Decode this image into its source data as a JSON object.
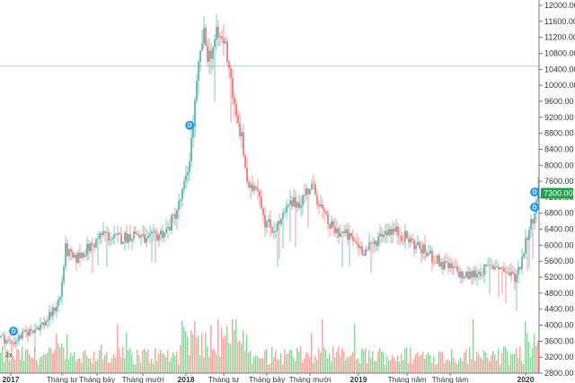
{
  "chart_data": {
    "type": "candlestick",
    "y_axis": {
      "min": 2800,
      "max": 12000,
      "ticks": [
        "12000.00",
        "11600.00",
        "11200.00",
        "10800.00",
        "10400.00",
        "10000.00",
        "9600.00",
        "9200.00",
        "8800.00",
        "8400.00",
        "8000.00",
        "7600.00",
        "7200.00",
        "6800.00",
        "6400.00",
        "6000.00",
        "5600.00",
        "5200.00",
        "4800.00",
        "4400.00",
        "4000.00",
        "3600.00",
        "3200.00",
        "2800.00"
      ]
    },
    "x_axis": {
      "labels": [
        {
          "text": "2017",
          "year": true,
          "pos": 0.02
        },
        {
          "text": "Tháng tư",
          "year": false,
          "pos": 0.115
        },
        {
          "text": "Tháng bảy",
          "year": false,
          "pos": 0.18
        },
        {
          "text": "Tháng mười",
          "year": false,
          "pos": 0.265
        },
        {
          "text": "2018",
          "year": true,
          "pos": 0.345
        },
        {
          "text": "Tháng tư",
          "year": false,
          "pos": 0.415
        },
        {
          "text": "Tháng bảy",
          "year": false,
          "pos": 0.495
        },
        {
          "text": "Tháng mười",
          "year": false,
          "pos": 0.575
        },
        {
          "text": "2019",
          "year": true,
          "pos": 0.665
        },
        {
          "text": "Tháng năm",
          "year": false,
          "pos": 0.755
        },
        {
          "text": "Tháng tám",
          "year": false,
          "pos": 0.835
        },
        {
          "text": "2020",
          "year": true,
          "pos": 0.975
        }
      ]
    },
    "reference_line": 10480,
    "last_price": "7300.00",
    "last_price_value": 7300,
    "price_path": [
      [
        0.0,
        3700
      ],
      [
        0.02,
        3550
      ],
      [
        0.04,
        3750
      ],
      [
        0.06,
        3900
      ],
      [
        0.08,
        4050
      ],
      [
        0.095,
        4300
      ],
      [
        0.11,
        4700
      ],
      [
        0.12,
        5900
      ],
      [
        0.135,
        5600
      ],
      [
        0.15,
        5800
      ],
      [
        0.17,
        6000
      ],
      [
        0.19,
        6300
      ],
      [
        0.21,
        6150
      ],
      [
        0.23,
        6200
      ],
      [
        0.25,
        6300
      ],
      [
        0.27,
        6100
      ],
      [
        0.29,
        6250
      ],
      [
        0.31,
        6400
      ],
      [
        0.33,
        7000
      ],
      [
        0.345,
        7700
      ],
      [
        0.355,
        8800
      ],
      [
        0.365,
        10200
      ],
      [
        0.375,
        11300
      ],
      [
        0.385,
        10700
      ],
      [
        0.4,
        11200
      ],
      [
        0.415,
        11100
      ],
      [
        0.425,
        10400
      ],
      [
        0.435,
        9200
      ],
      [
        0.445,
        8800
      ],
      [
        0.46,
        7300
      ],
      [
        0.475,
        7600
      ],
      [
        0.49,
        6600
      ],
      [
        0.505,
        6400
      ],
      [
        0.52,
        6600
      ],
      [
        0.535,
        7000
      ],
      [
        0.555,
        7100
      ],
      [
        0.575,
        7500
      ],
      [
        0.59,
        7100
      ],
      [
        0.6,
        6700
      ],
      [
        0.615,
        6400
      ],
      [
        0.635,
        6300
      ],
      [
        0.655,
        6100
      ],
      [
        0.675,
        5850
      ],
      [
        0.69,
        6000
      ],
      [
        0.705,
        6300
      ],
      [
        0.72,
        6400
      ],
      [
        0.74,
        6300
      ],
      [
        0.76,
        6100
      ],
      [
        0.78,
        5900
      ],
      [
        0.8,
        5700
      ],
      [
        0.82,
        5500
      ],
      [
        0.84,
        5400
      ],
      [
        0.86,
        5200
      ],
      [
        0.88,
        5300
      ],
      [
        0.9,
        5400
      ],
      [
        0.92,
        5500
      ],
      [
        0.94,
        5300
      ],
      [
        0.955,
        5200
      ],
      [
        0.965,
        5600
      ],
      [
        0.975,
        6200
      ],
      [
        0.985,
        6600
      ],
      [
        0.995,
        7300
      ],
      [
        1.0,
        7350
      ]
    ],
    "volume_scale_max": 1.0,
    "dividend_markers": [
      {
        "label": "D",
        "pos": 0.025,
        "price": 3850
      },
      {
        "label": "D",
        "pos": 0.352,
        "price": 9000
      },
      {
        "label": "D",
        "pos": 0.998,
        "price": 7330
      },
      {
        "label": "D",
        "pos": 0.998,
        "price": 6950
      }
    ],
    "small_label": "2x",
    "colors": {
      "up": "#26a69a",
      "down": "#ef5350",
      "volume_up": "#8fd19e",
      "volume_down": "#f4a6a6",
      "reference_line": "#8ed18e",
      "badge": "#21a04a",
      "marker": "#2196f3",
      "axis": "#555555"
    }
  }
}
